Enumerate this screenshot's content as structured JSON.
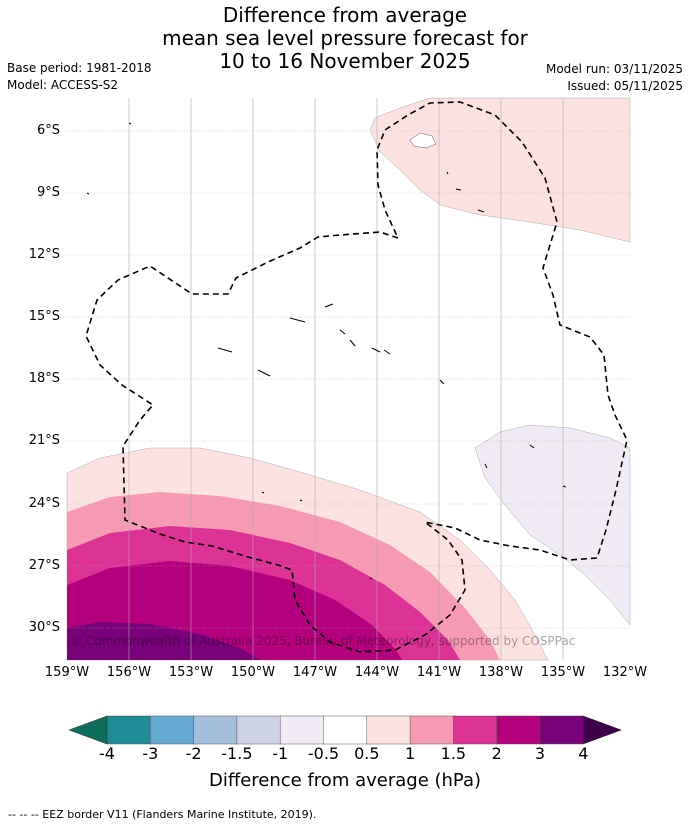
{
  "title": {
    "line1": "Difference from average",
    "line2": "mean sea level pressure forecast for",
    "line3": "10 to 16 November 2025"
  },
  "meta": {
    "base_period": "Base period: 1981-2018",
    "model": "Model: ACCESS-S2",
    "model_run": "Model run: 03/11/2025",
    "issued": "Issued: 05/11/2025"
  },
  "map": {
    "lat_labels": [
      "6°S",
      "9°S",
      "12°S",
      "15°S",
      "18°S",
      "21°S",
      "24°S",
      "27°S",
      "30°S"
    ],
    "lon_labels": [
      "159°W",
      "156°W",
      "153°W",
      "150°W",
      "147°W",
      "144°W",
      "141°W",
      "138°W",
      "135°W",
      "132°W"
    ],
    "copyright": "© Commonwealth of Australia 2025, Bureau of Meteorology, supported by COSPPac"
  },
  "colorbar": {
    "ticks": [
      "-4",
      "-3",
      "-2",
      "-1.5",
      "-1",
      "-0.5",
      "0.5",
      "1",
      "1.5",
      "2",
      "3",
      "4"
    ],
    "colors": [
      "#1e8c96",
      "#64aad2",
      "#a5bedc",
      "#cdd2e6",
      "#f0ebf5",
      "#ffffff",
      "#fde2e2",
      "#f79bb4",
      "#dc3296",
      "#b4007d",
      "#780078"
    ],
    "low_extend_color": "#0a6e5a",
    "high_extend_color": "#3c004b",
    "label": "Difference from average (hPa)"
  },
  "footer": "--  --  -- EEZ border V11 (Flanders Marine Institute, 2019)."
}
